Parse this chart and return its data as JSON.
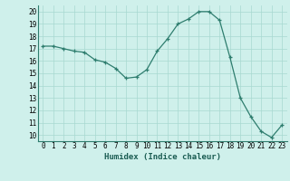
{
  "x": [
    0,
    1,
    2,
    3,
    4,
    5,
    6,
    7,
    8,
    9,
    10,
    11,
    12,
    13,
    14,
    15,
    16,
    17,
    18,
    19,
    20,
    21,
    22,
    23
  ],
  "y": [
    17.2,
    17.2,
    17.0,
    16.8,
    16.7,
    16.1,
    15.9,
    15.4,
    14.6,
    14.7,
    15.3,
    16.8,
    17.8,
    19.0,
    19.4,
    20.0,
    20.0,
    19.3,
    16.3,
    13.0,
    11.5,
    10.3,
    9.8,
    10.8
  ],
  "line_color": "#2e7d6e",
  "marker": "+",
  "marker_size": 3,
  "bg_color": "#cff0eb",
  "grid_color": "#a8d8d0",
  "xlabel": "Humidex (Indice chaleur)",
  "xlim": [
    -0.5,
    23.5
  ],
  "ylim": [
    9.5,
    20.5
  ],
  "yticks": [
    10,
    11,
    12,
    13,
    14,
    15,
    16,
    17,
    18,
    19,
    20
  ],
  "xticks": [
    0,
    1,
    2,
    3,
    4,
    5,
    6,
    7,
    8,
    9,
    10,
    11,
    12,
    13,
    14,
    15,
    16,
    17,
    18,
    19,
    20,
    21,
    22,
    23
  ],
  "label_fontsize": 6.5,
  "tick_fontsize": 5.5
}
